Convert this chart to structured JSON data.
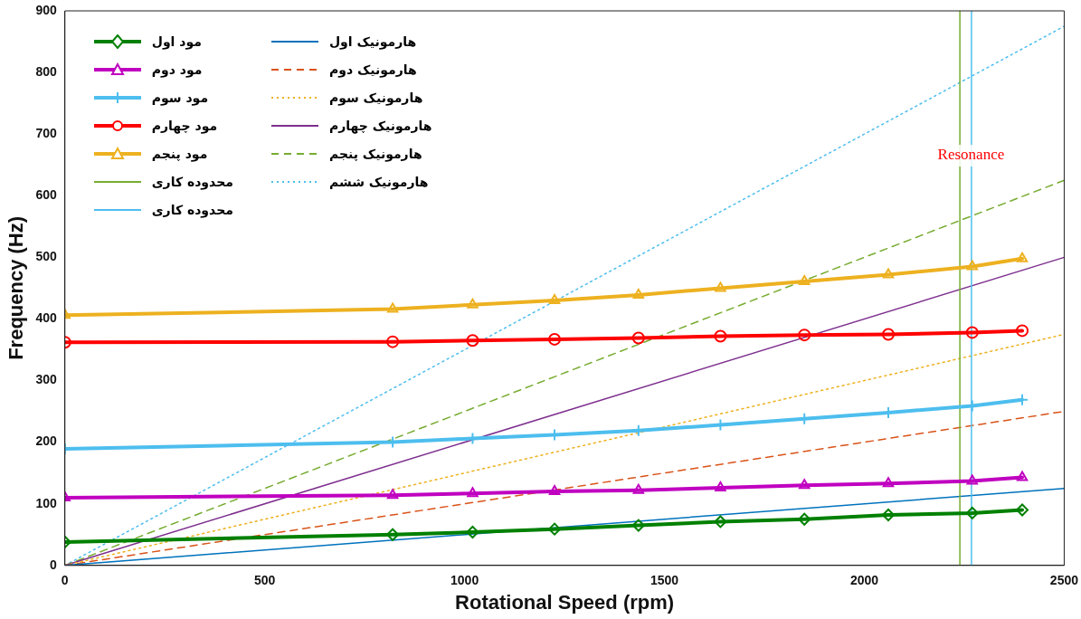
{
  "chart_data": {
    "type": "line",
    "xlabel": "Rotational Speed (rpm)",
    "ylabel": "Frequency (Hz)",
    "x": [
      0,
      820,
      1020,
      1225,
      1435,
      1640,
      1850,
      2060,
      2270,
      2395
    ],
    "xlim": [
      0,
      2500
    ],
    "xticks": [
      0,
      500,
      1000,
      1500,
      2000,
      2500
    ],
    "ylim": [
      0,
      900
    ],
    "yticks": [
      0,
      100,
      200,
      300,
      400,
      500,
      600,
      700,
      800,
      900
    ],
    "grid": false,
    "legend": "top left",
    "annotations": [
      "Resonance"
    ],
    "series": [
      {
        "name": "مود اول",
        "type": "line",
        "color": "#008000",
        "marker": "diamond",
        "line_style": "solid",
        "values": [
          38,
          50,
          54,
          59,
          65,
          71,
          75,
          82,
          85,
          90
        ]
      },
      {
        "name": "مود دوم",
        "type": "line",
        "color": "#c000c0",
        "marker": "triangle",
        "line_style": "solid",
        "values": [
          110,
          114,
          117,
          120,
          122,
          126,
          130,
          133,
          137,
          143
        ]
      },
      {
        "name": "مود سوم",
        "type": "line",
        "color": "#4dbeee",
        "marker": "cross",
        "line_style": "solid",
        "values": [
          189,
          200,
          206,
          212,
          219,
          228,
          238,
          248,
          259,
          269
        ]
      },
      {
        "name": "مود چهارم",
        "type": "line",
        "color": "#ff0000",
        "marker": "circle",
        "line_style": "solid",
        "values": [
          362,
          363,
          365,
          367,
          369,
          372,
          374,
          375,
          378,
          381
        ]
      },
      {
        "name": "مود پنجم",
        "type": "line",
        "color": "#edb120",
        "marker": "triangle",
        "line_style": "solid",
        "values": [
          406,
          416,
          423,
          430,
          439,
          450,
          461,
          472,
          485,
          498
        ]
      },
      {
        "name": "محدوده کاری",
        "type": "line",
        "color": "#77ac30",
        "marker": "none",
        "line_style": "solid",
        "x": [
          2239,
          2239
        ],
        "values": [
          0,
          900
        ]
      },
      {
        "name": "محدوده کاری",
        "type": "line",
        "color": "#4dbeee",
        "marker": "none",
        "line_style": "solid",
        "x": [
          2268,
          2268
        ],
        "values": [
          0,
          900
        ]
      },
      {
        "name": "هارمونیک اول",
        "type": "line",
        "color": "#0072bd",
        "marker": "none",
        "line_style": "solid",
        "x": [
          0,
          2500
        ],
        "values": [
          0,
          125
        ]
      },
      {
        "name": "هارمونیک دوم",
        "type": "line",
        "color": "#d95319",
        "marker": "none",
        "line_style": "dashed",
        "x": [
          0,
          2500
        ],
        "values": [
          0,
          250
        ]
      },
      {
        "name": "هارمونیک سوم",
        "type": "line",
        "color": "#edb120",
        "marker": "none",
        "line_style": "dotted",
        "x": [
          0,
          2500
        ],
        "values": [
          0,
          375
        ]
      },
      {
        "name": "هارمونیک چهارم",
        "type": "line",
        "color": "#7e2f8e",
        "marker": "none",
        "line_style": "solid",
        "x": [
          0,
          2500
        ],
        "values": [
          0,
          500
        ]
      },
      {
        "name": "هارمونیک پنجم",
        "type": "line",
        "color": "#77ac30",
        "marker": "none",
        "line_style": "dashed",
        "x": [
          0,
          2500
        ],
        "values": [
          0,
          625
        ]
      },
      {
        "name": "هارمونیک ششم",
        "type": "line",
        "color": "#4dbeee",
        "marker": "none",
        "line_style": "dotted",
        "x": [
          0,
          2500
        ],
        "values": [
          0,
          875
        ]
      }
    ]
  }
}
